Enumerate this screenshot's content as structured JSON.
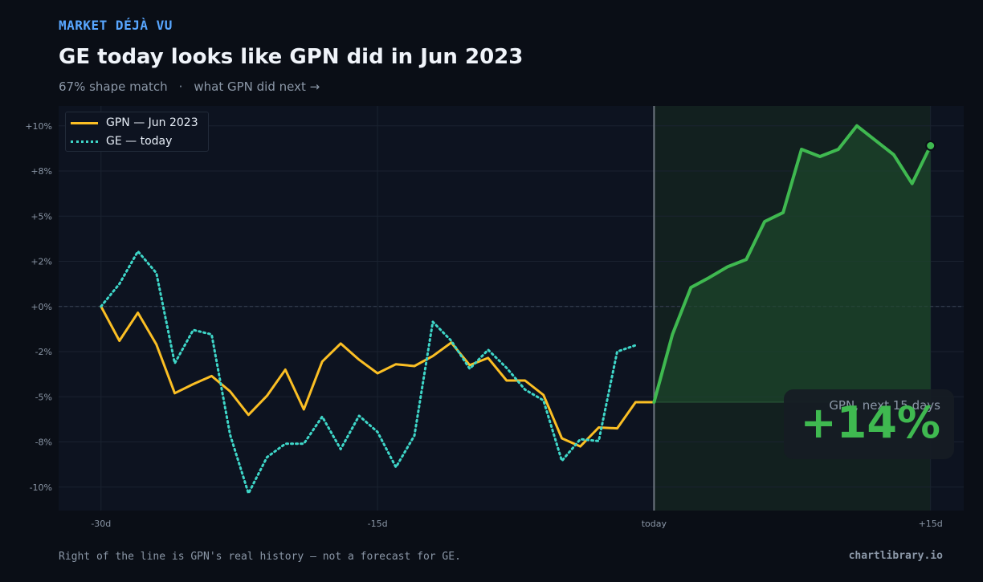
{
  "header": {
    "kicker": "MARKET DÉJÀ VU",
    "title": "GE today looks like GPN did in Jun 2023",
    "subtitle_match": "67% shape match",
    "subtitle_sep": "·",
    "subtitle_next": "what GPN did next →"
  },
  "callout": {
    "caption": "GPN, next 15 days",
    "value": "+14%"
  },
  "footer": {
    "note": "Right of the line is GPN's real history — not a forecast for GE.",
    "brand": "chartlibrary.io"
  },
  "colors": {
    "background": "#0a0e16",
    "plot_background": "#0d1320",
    "gpn_past": "#fbbf24",
    "ge_today": "#3ed6c8",
    "gpn_future": "#3fb950",
    "accent": "#58a6ff"
  },
  "chart_data": {
    "type": "line",
    "title": "GE today looks like GPN did in Jun 2023",
    "xlabel": "",
    "ylabel": "",
    "x_ticks": [
      {
        "value": -30,
        "label": "-30d"
      },
      {
        "value": -15,
        "label": "-15d"
      },
      {
        "value": 0,
        "label": "today"
      },
      {
        "value": 15,
        "label": "+15d"
      }
    ],
    "y_ticks": [
      {
        "value": -10,
        "label": "-10%"
      },
      {
        "value": -7.5,
        "label": "-8%"
      },
      {
        "value": -5,
        "label": "-5%"
      },
      {
        "value": -2.5,
        "label": "-2%"
      },
      {
        "value": 0,
        "label": "+0%"
      },
      {
        "value": 2.5,
        "label": "+2%"
      },
      {
        "value": 5,
        "label": "+5%"
      },
      {
        "value": 7.5,
        "label": "+8%"
      },
      {
        "value": 10,
        "label": "+10%"
      }
    ],
    "xlim": [
      -32.3,
      16.8
    ],
    "ylim": [
      -11.3,
      11.1
    ],
    "grid": true,
    "legend_position": "top-left",
    "series": [
      {
        "name": "GPN — Jun 2023",
        "style": "solid",
        "x": [
          -30,
          -29,
          -28,
          -27,
          -26,
          -25,
          -24,
          -23,
          -22,
          -21,
          -20,
          -19,
          -18,
          -17,
          -16,
          -15,
          -14,
          -13,
          -12,
          -11,
          -10,
          -9,
          -8,
          -7,
          -6,
          -5,
          -4,
          -3,
          -2,
          -1,
          0
        ],
        "y": [
          0,
          -1.9,
          -0.35,
          -2.1,
          -4.8,
          -4.3,
          -3.85,
          -4.7,
          -6.0,
          -4.95,
          -3.5,
          -5.7,
          -3.05,
          -2.05,
          -2.95,
          -3.7,
          -3.2,
          -3.3,
          -2.75,
          -2.0,
          -3.25,
          -2.85,
          -4.1,
          -4.1,
          -4.9,
          -7.3,
          -7.75,
          -6.7,
          -6.75,
          -5.3,
          -5.3
        ]
      },
      {
        "name": "GE — today",
        "style": "dotted",
        "x": [
          -30,
          -29,
          -28,
          -27,
          -26,
          -25,
          -24,
          -23,
          -22,
          -21,
          -20,
          -19,
          -18,
          -17,
          -16,
          -15,
          -14,
          -13,
          -12,
          -11,
          -10,
          -9,
          -8,
          -7,
          -6,
          -5,
          -4,
          -3,
          -2,
          -1,
          0
        ],
        "y": [
          0,
          1.25,
          3.05,
          1.85,
          -3.15,
          -1.3,
          -1.55,
          -7.1,
          -10.35,
          -8.35,
          -7.6,
          -7.6,
          -6.1,
          -7.9,
          -6.05,
          -6.95,
          -8.9,
          -7.15,
          -0.85,
          -1.9,
          -3.45,
          -2.4,
          -3.4,
          -4.6,
          -5.2,
          -8.55,
          -7.35,
          -7.45,
          -2.5,
          -2.15,
          null
        ]
      },
      {
        "name": "GPN — next 15 days",
        "style": "solid",
        "x": [
          0,
          1,
          2,
          3,
          4,
          5,
          6,
          7,
          8,
          9,
          10,
          11,
          12,
          13,
          14,
          15
        ],
        "y": [
          -5.3,
          -1.55,
          1.05,
          1.6,
          2.2,
          2.6,
          4.7,
          5.2,
          8.7,
          8.3,
          8.7,
          10.0,
          9.2,
          8.4,
          6.8,
          8.9
        ]
      }
    ]
  }
}
